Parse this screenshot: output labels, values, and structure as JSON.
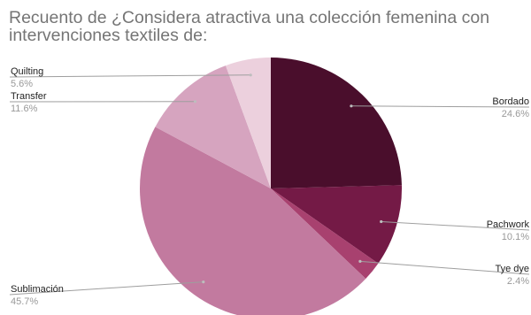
{
  "chart_data": {
    "type": "pie",
    "title": "Recuento de ¿Considera atractiva una colección femenina con intervenciones textiles de:",
    "slices": [
      {
        "name": "Bordado",
        "value": 24.6,
        "label": "24.6%",
        "color": "#4a0e2c"
      },
      {
        "name": "Pachwork",
        "value": 10.1,
        "label": "10.1%",
        "color": "#741a46"
      },
      {
        "name": "Tye dye",
        "value": 2.4,
        "label": "2.4%",
        "color": "#a8416f"
      },
      {
        "name": "Sublimación",
        "value": 45.7,
        "label": "45.7%",
        "color": "#c27a9f"
      },
      {
        "name": "Transfer",
        "value": 11.6,
        "label": "11.6%",
        "color": "#d6a4bf"
      },
      {
        "name": "Quilting",
        "value": 5.6,
        "label": "5.6%",
        "color": "#ecd0dd"
      }
    ],
    "legend": "none"
  }
}
